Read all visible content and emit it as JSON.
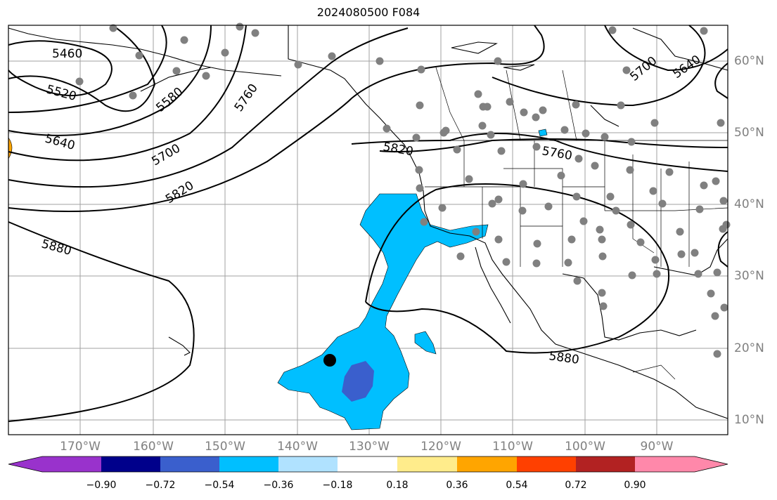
{
  "title": "2024080500 F084",
  "map": {
    "lon_labels": [
      "170°W",
      "160°W",
      "150°W",
      "140°W",
      "130°W",
      "120°W",
      "110°W",
      "100°W",
      "90°W"
    ],
    "lat_labels": [
      "60°N",
      "50°N",
      "40°N",
      "30°N",
      "20°N",
      "10°N"
    ],
    "contour_labels": [
      "5460",
      "5520",
      "5580",
      "5640",
      "5700",
      "5760",
      "5820",
      "5880",
      "5820",
      "5760",
      "5700",
      "5640",
      "5880"
    ],
    "grid_color": "#a0a0a0",
    "contour_color": "#000000",
    "station_color": "#808080",
    "marker_color": "#000000"
  },
  "colorbar": {
    "ticks": [
      "−0.90",
      "−0.72",
      "−0.54",
      "−0.36",
      "−0.18",
      "0.18",
      "0.36",
      "0.54",
      "0.72",
      "0.90"
    ],
    "colors": [
      "#9932cc",
      "#00008b",
      "#3a5fcd",
      "#00bfff",
      "#b0e2ff",
      "#ffffff",
      "#ffec8b",
      "#ffa500",
      "#ff4000",
      "#b22222",
      "#ff88aa"
    ]
  }
}
